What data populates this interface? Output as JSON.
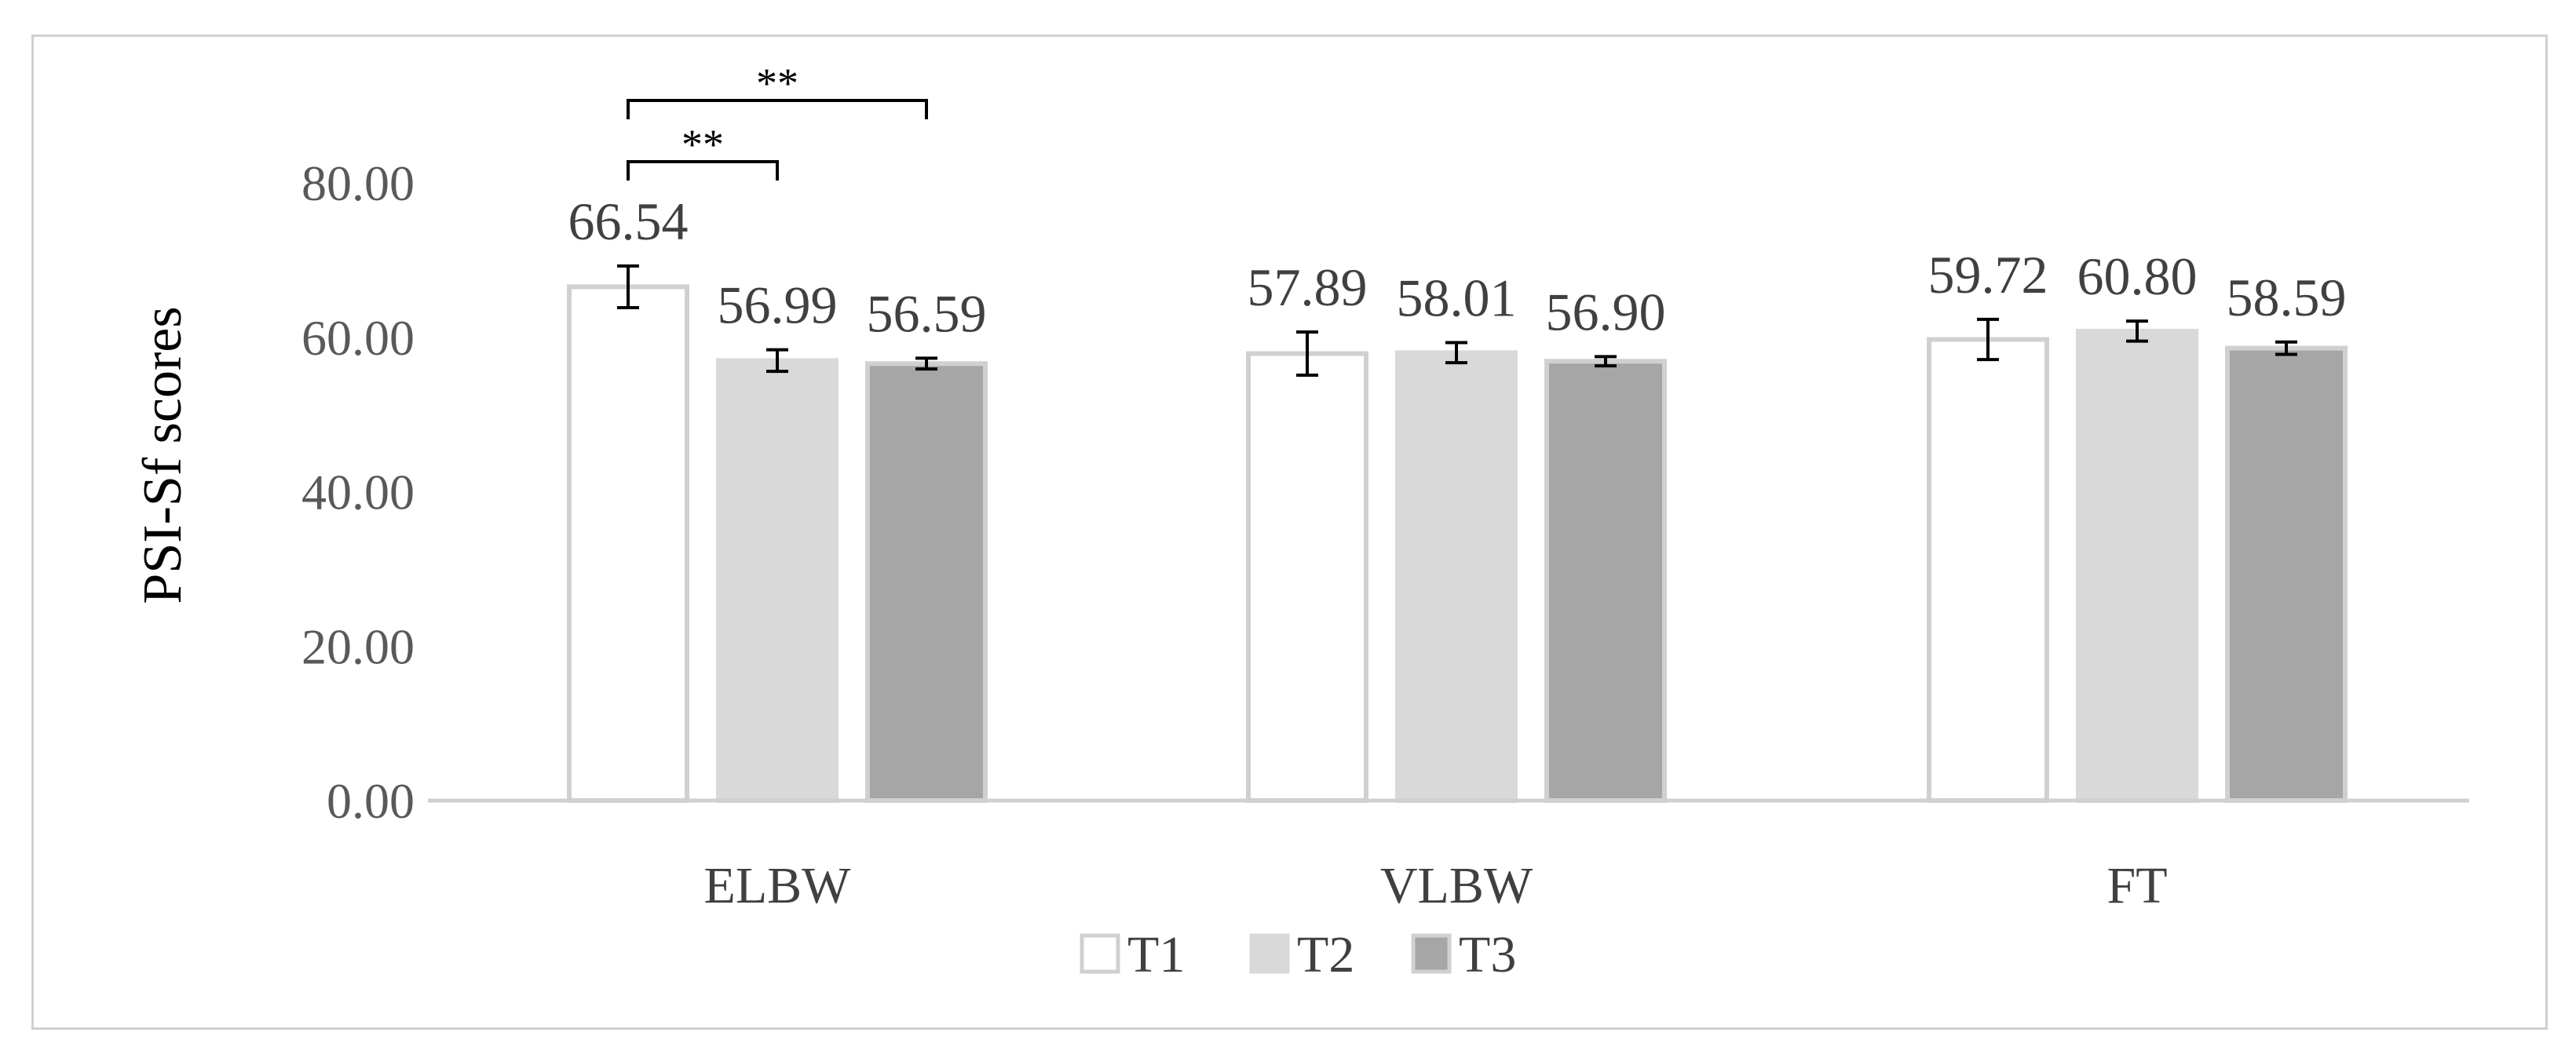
{
  "chart_data": {
    "type": "bar",
    "title": "",
    "ylabel": "PSI-Sf scores",
    "xlabel": "",
    "ylim": [
      0,
      80
    ],
    "yticks": [
      0,
      20,
      40,
      60,
      80
    ],
    "ytick_labels": [
      "0.00",
      "20.00",
      "40.00",
      "60.00",
      "80.00"
    ],
    "categories": [
      "ELBW",
      "VLBW",
      "FT"
    ],
    "series": [
      {
        "name": "T1",
        "values": [
          66.54,
          57.89,
          59.72
        ],
        "value_labels": [
          "66.54",
          "57.89",
          "59.72"
        ],
        "errors": [
          2.7,
          2.8,
          2.6
        ],
        "fill": "#ffffff",
        "stroke": "#d0d0d0"
      },
      {
        "name": "T2",
        "values": [
          56.99,
          58.01,
          60.8
        ],
        "value_labels": [
          "56.99",
          "58.01",
          "60.80"
        ],
        "errors": [
          1.4,
          1.3,
          1.3
        ],
        "fill": "#d9d9d9",
        "stroke": "#d9d9d9"
      },
      {
        "name": "T3",
        "values": [
          56.59,
          56.9,
          58.59
        ],
        "value_labels": [
          "56.59",
          "56.90",
          "58.59"
        ],
        "errors": [
          0.7,
          0.6,
          0.8
        ],
        "fill": "#a6a6a6",
        "stroke": "#d0d0d0"
      }
    ],
    "significance": [
      {
        "category": "ELBW",
        "from": "T1",
        "to": "T3",
        "label": "**"
      },
      {
        "category": "ELBW",
        "from": "T1",
        "to": "T2",
        "label": "**"
      }
    ],
    "legend": {
      "position": "bottom",
      "entries": [
        "T1",
        "T2",
        "T3"
      ]
    },
    "grid": false
  }
}
